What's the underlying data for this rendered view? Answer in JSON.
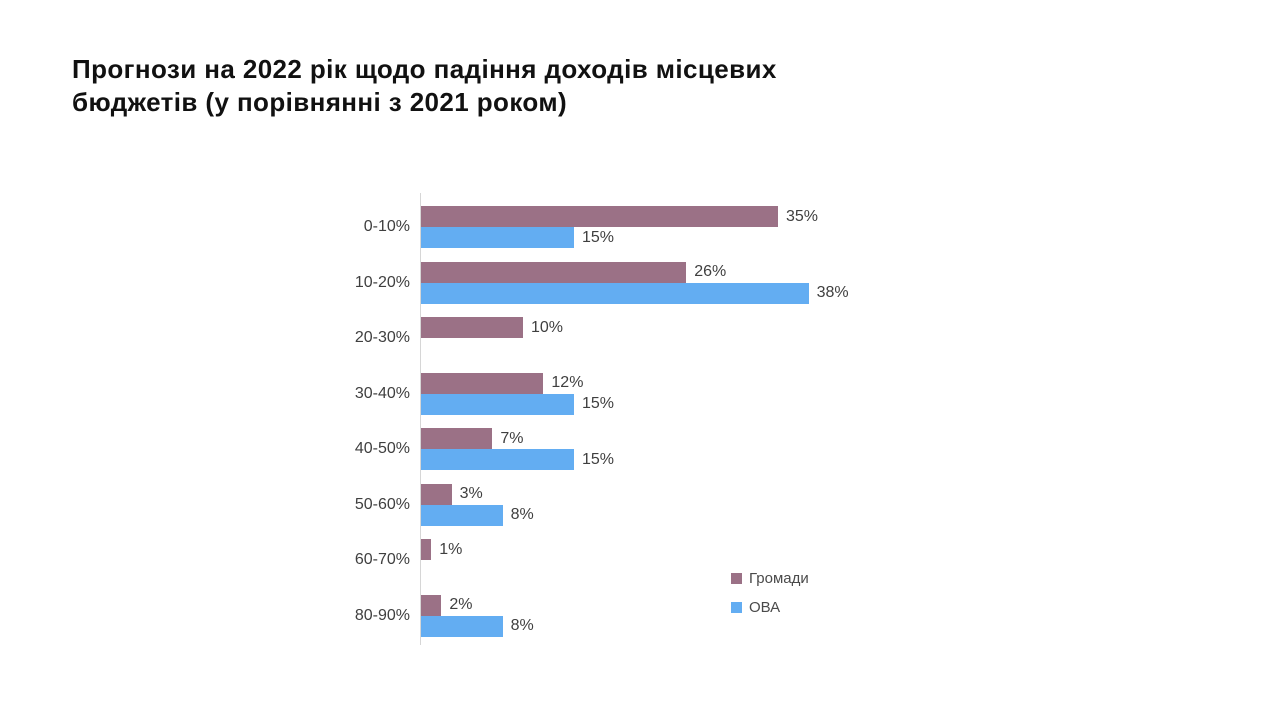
{
  "title": {
    "lines": [
      "Прогнози на 2022 рік щодо падіння доходів місцевих",
      "бюджетів (у порівнянні з 2021 роком)"
    ]
  },
  "colors": {
    "hromady": "#9B7186",
    "ova": "#63ADF2",
    "axis": "#D6D6D6",
    "label_text": "#3F3F3F",
    "title_text": "#111111",
    "background": "#FFFFFF"
  },
  "chart_data": {
    "type": "bar",
    "orientation": "horizontal",
    "title": "Прогнози на 2022 рік щодо падіння доходів місцевих бюджетів (у порівнянні з 2021 роком)",
    "categories": [
      "0-10%",
      "10-20%",
      "20-30%",
      "30-40%",
      "40-50%",
      "50-60%",
      "60-70%",
      "80-90%"
    ],
    "series": [
      {
        "key": "hromady",
        "name": "Громади",
        "color": "#9B7186",
        "values": [
          35,
          26,
          10,
          12,
          7,
          3,
          1,
          2
        ]
      },
      {
        "key": "ova",
        "name": "ОВА",
        "color": "#63ADF2",
        "values": [
          15,
          38,
          null,
          15,
          15,
          8,
          null,
          8
        ]
      }
    ],
    "value_suffix": "%",
    "xlim": [
      0,
      40
    ],
    "grid": false,
    "data_labels": true,
    "legend_position": "inside-bottom-right"
  }
}
